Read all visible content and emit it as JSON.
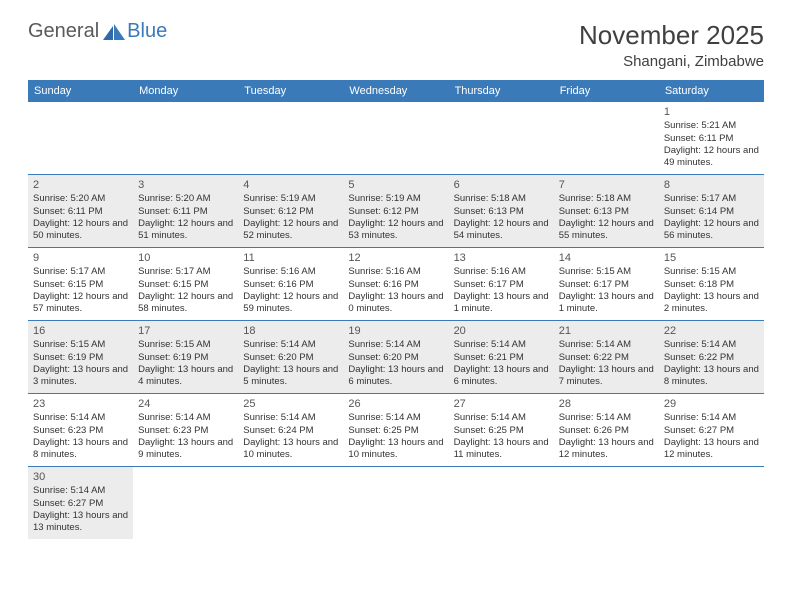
{
  "logo": {
    "general": "General",
    "blue": "Blue"
  },
  "title": "November 2025",
  "location": "Shangani, Zimbabwe",
  "colors": {
    "header_bg": "#3a7ab8",
    "header_text": "#ffffff",
    "shaded_bg": "#ececec",
    "border": "#3a7ab8",
    "title_color": "#404040",
    "logo_gray": "#5a5a5a",
    "logo_blue": "#3a7ab8"
  },
  "day_labels": [
    "Sunday",
    "Monday",
    "Tuesday",
    "Wednesday",
    "Thursday",
    "Friday",
    "Saturday"
  ],
  "weeks": [
    [
      {
        "num": "",
        "sunrise": "",
        "sunset": "",
        "daylight": ""
      },
      {
        "num": "",
        "sunrise": "",
        "sunset": "",
        "daylight": ""
      },
      {
        "num": "",
        "sunrise": "",
        "sunset": "",
        "daylight": ""
      },
      {
        "num": "",
        "sunrise": "",
        "sunset": "",
        "daylight": ""
      },
      {
        "num": "",
        "sunrise": "",
        "sunset": "",
        "daylight": ""
      },
      {
        "num": "",
        "sunrise": "",
        "sunset": "",
        "daylight": ""
      },
      {
        "num": "1",
        "sunrise": "Sunrise: 5:21 AM",
        "sunset": "Sunset: 6:11 PM",
        "daylight": "Daylight: 12 hours and 49 minutes."
      }
    ],
    [
      {
        "num": "2",
        "sunrise": "Sunrise: 5:20 AM",
        "sunset": "Sunset: 6:11 PM",
        "daylight": "Daylight: 12 hours and 50 minutes."
      },
      {
        "num": "3",
        "sunrise": "Sunrise: 5:20 AM",
        "sunset": "Sunset: 6:11 PM",
        "daylight": "Daylight: 12 hours and 51 minutes."
      },
      {
        "num": "4",
        "sunrise": "Sunrise: 5:19 AM",
        "sunset": "Sunset: 6:12 PM",
        "daylight": "Daylight: 12 hours and 52 minutes."
      },
      {
        "num": "5",
        "sunrise": "Sunrise: 5:19 AM",
        "sunset": "Sunset: 6:12 PM",
        "daylight": "Daylight: 12 hours and 53 minutes."
      },
      {
        "num": "6",
        "sunrise": "Sunrise: 5:18 AM",
        "sunset": "Sunset: 6:13 PM",
        "daylight": "Daylight: 12 hours and 54 minutes."
      },
      {
        "num": "7",
        "sunrise": "Sunrise: 5:18 AM",
        "sunset": "Sunset: 6:13 PM",
        "daylight": "Daylight: 12 hours and 55 minutes."
      },
      {
        "num": "8",
        "sunrise": "Sunrise: 5:17 AM",
        "sunset": "Sunset: 6:14 PM",
        "daylight": "Daylight: 12 hours and 56 minutes."
      }
    ],
    [
      {
        "num": "9",
        "sunrise": "Sunrise: 5:17 AM",
        "sunset": "Sunset: 6:15 PM",
        "daylight": "Daylight: 12 hours and 57 minutes."
      },
      {
        "num": "10",
        "sunrise": "Sunrise: 5:17 AM",
        "sunset": "Sunset: 6:15 PM",
        "daylight": "Daylight: 12 hours and 58 minutes."
      },
      {
        "num": "11",
        "sunrise": "Sunrise: 5:16 AM",
        "sunset": "Sunset: 6:16 PM",
        "daylight": "Daylight: 12 hours and 59 minutes."
      },
      {
        "num": "12",
        "sunrise": "Sunrise: 5:16 AM",
        "sunset": "Sunset: 6:16 PM",
        "daylight": "Daylight: 13 hours and 0 minutes."
      },
      {
        "num": "13",
        "sunrise": "Sunrise: 5:16 AM",
        "sunset": "Sunset: 6:17 PM",
        "daylight": "Daylight: 13 hours and 1 minute."
      },
      {
        "num": "14",
        "sunrise": "Sunrise: 5:15 AM",
        "sunset": "Sunset: 6:17 PM",
        "daylight": "Daylight: 13 hours and 1 minute."
      },
      {
        "num": "15",
        "sunrise": "Sunrise: 5:15 AM",
        "sunset": "Sunset: 6:18 PM",
        "daylight": "Daylight: 13 hours and 2 minutes."
      }
    ],
    [
      {
        "num": "16",
        "sunrise": "Sunrise: 5:15 AM",
        "sunset": "Sunset: 6:19 PM",
        "daylight": "Daylight: 13 hours and 3 minutes."
      },
      {
        "num": "17",
        "sunrise": "Sunrise: 5:15 AM",
        "sunset": "Sunset: 6:19 PM",
        "daylight": "Daylight: 13 hours and 4 minutes."
      },
      {
        "num": "18",
        "sunrise": "Sunrise: 5:14 AM",
        "sunset": "Sunset: 6:20 PM",
        "daylight": "Daylight: 13 hours and 5 minutes."
      },
      {
        "num": "19",
        "sunrise": "Sunrise: 5:14 AM",
        "sunset": "Sunset: 6:20 PM",
        "daylight": "Daylight: 13 hours and 6 minutes."
      },
      {
        "num": "20",
        "sunrise": "Sunrise: 5:14 AM",
        "sunset": "Sunset: 6:21 PM",
        "daylight": "Daylight: 13 hours and 6 minutes."
      },
      {
        "num": "21",
        "sunrise": "Sunrise: 5:14 AM",
        "sunset": "Sunset: 6:22 PM",
        "daylight": "Daylight: 13 hours and 7 minutes."
      },
      {
        "num": "22",
        "sunrise": "Sunrise: 5:14 AM",
        "sunset": "Sunset: 6:22 PM",
        "daylight": "Daylight: 13 hours and 8 minutes."
      }
    ],
    [
      {
        "num": "23",
        "sunrise": "Sunrise: 5:14 AM",
        "sunset": "Sunset: 6:23 PM",
        "daylight": "Daylight: 13 hours and 8 minutes."
      },
      {
        "num": "24",
        "sunrise": "Sunrise: 5:14 AM",
        "sunset": "Sunset: 6:23 PM",
        "daylight": "Daylight: 13 hours and 9 minutes."
      },
      {
        "num": "25",
        "sunrise": "Sunrise: 5:14 AM",
        "sunset": "Sunset: 6:24 PM",
        "daylight": "Daylight: 13 hours and 10 minutes."
      },
      {
        "num": "26",
        "sunrise": "Sunrise: 5:14 AM",
        "sunset": "Sunset: 6:25 PM",
        "daylight": "Daylight: 13 hours and 10 minutes."
      },
      {
        "num": "27",
        "sunrise": "Sunrise: 5:14 AM",
        "sunset": "Sunset: 6:25 PM",
        "daylight": "Daylight: 13 hours and 11 minutes."
      },
      {
        "num": "28",
        "sunrise": "Sunrise: 5:14 AM",
        "sunset": "Sunset: 6:26 PM",
        "daylight": "Daylight: 13 hours and 12 minutes."
      },
      {
        "num": "29",
        "sunrise": "Sunrise: 5:14 AM",
        "sunset": "Sunset: 6:27 PM",
        "daylight": "Daylight: 13 hours and 12 minutes."
      }
    ],
    [
      {
        "num": "30",
        "sunrise": "Sunrise: 5:14 AM",
        "sunset": "Sunset: 6:27 PM",
        "daylight": "Daylight: 13 hours and 13 minutes."
      },
      {
        "num": "",
        "sunrise": "",
        "sunset": "",
        "daylight": ""
      },
      {
        "num": "",
        "sunrise": "",
        "sunset": "",
        "daylight": ""
      },
      {
        "num": "",
        "sunrise": "",
        "sunset": "",
        "daylight": ""
      },
      {
        "num": "",
        "sunrise": "",
        "sunset": "",
        "daylight": ""
      },
      {
        "num": "",
        "sunrise": "",
        "sunset": "",
        "daylight": ""
      },
      {
        "num": "",
        "sunrise": "",
        "sunset": "",
        "daylight": ""
      }
    ]
  ]
}
